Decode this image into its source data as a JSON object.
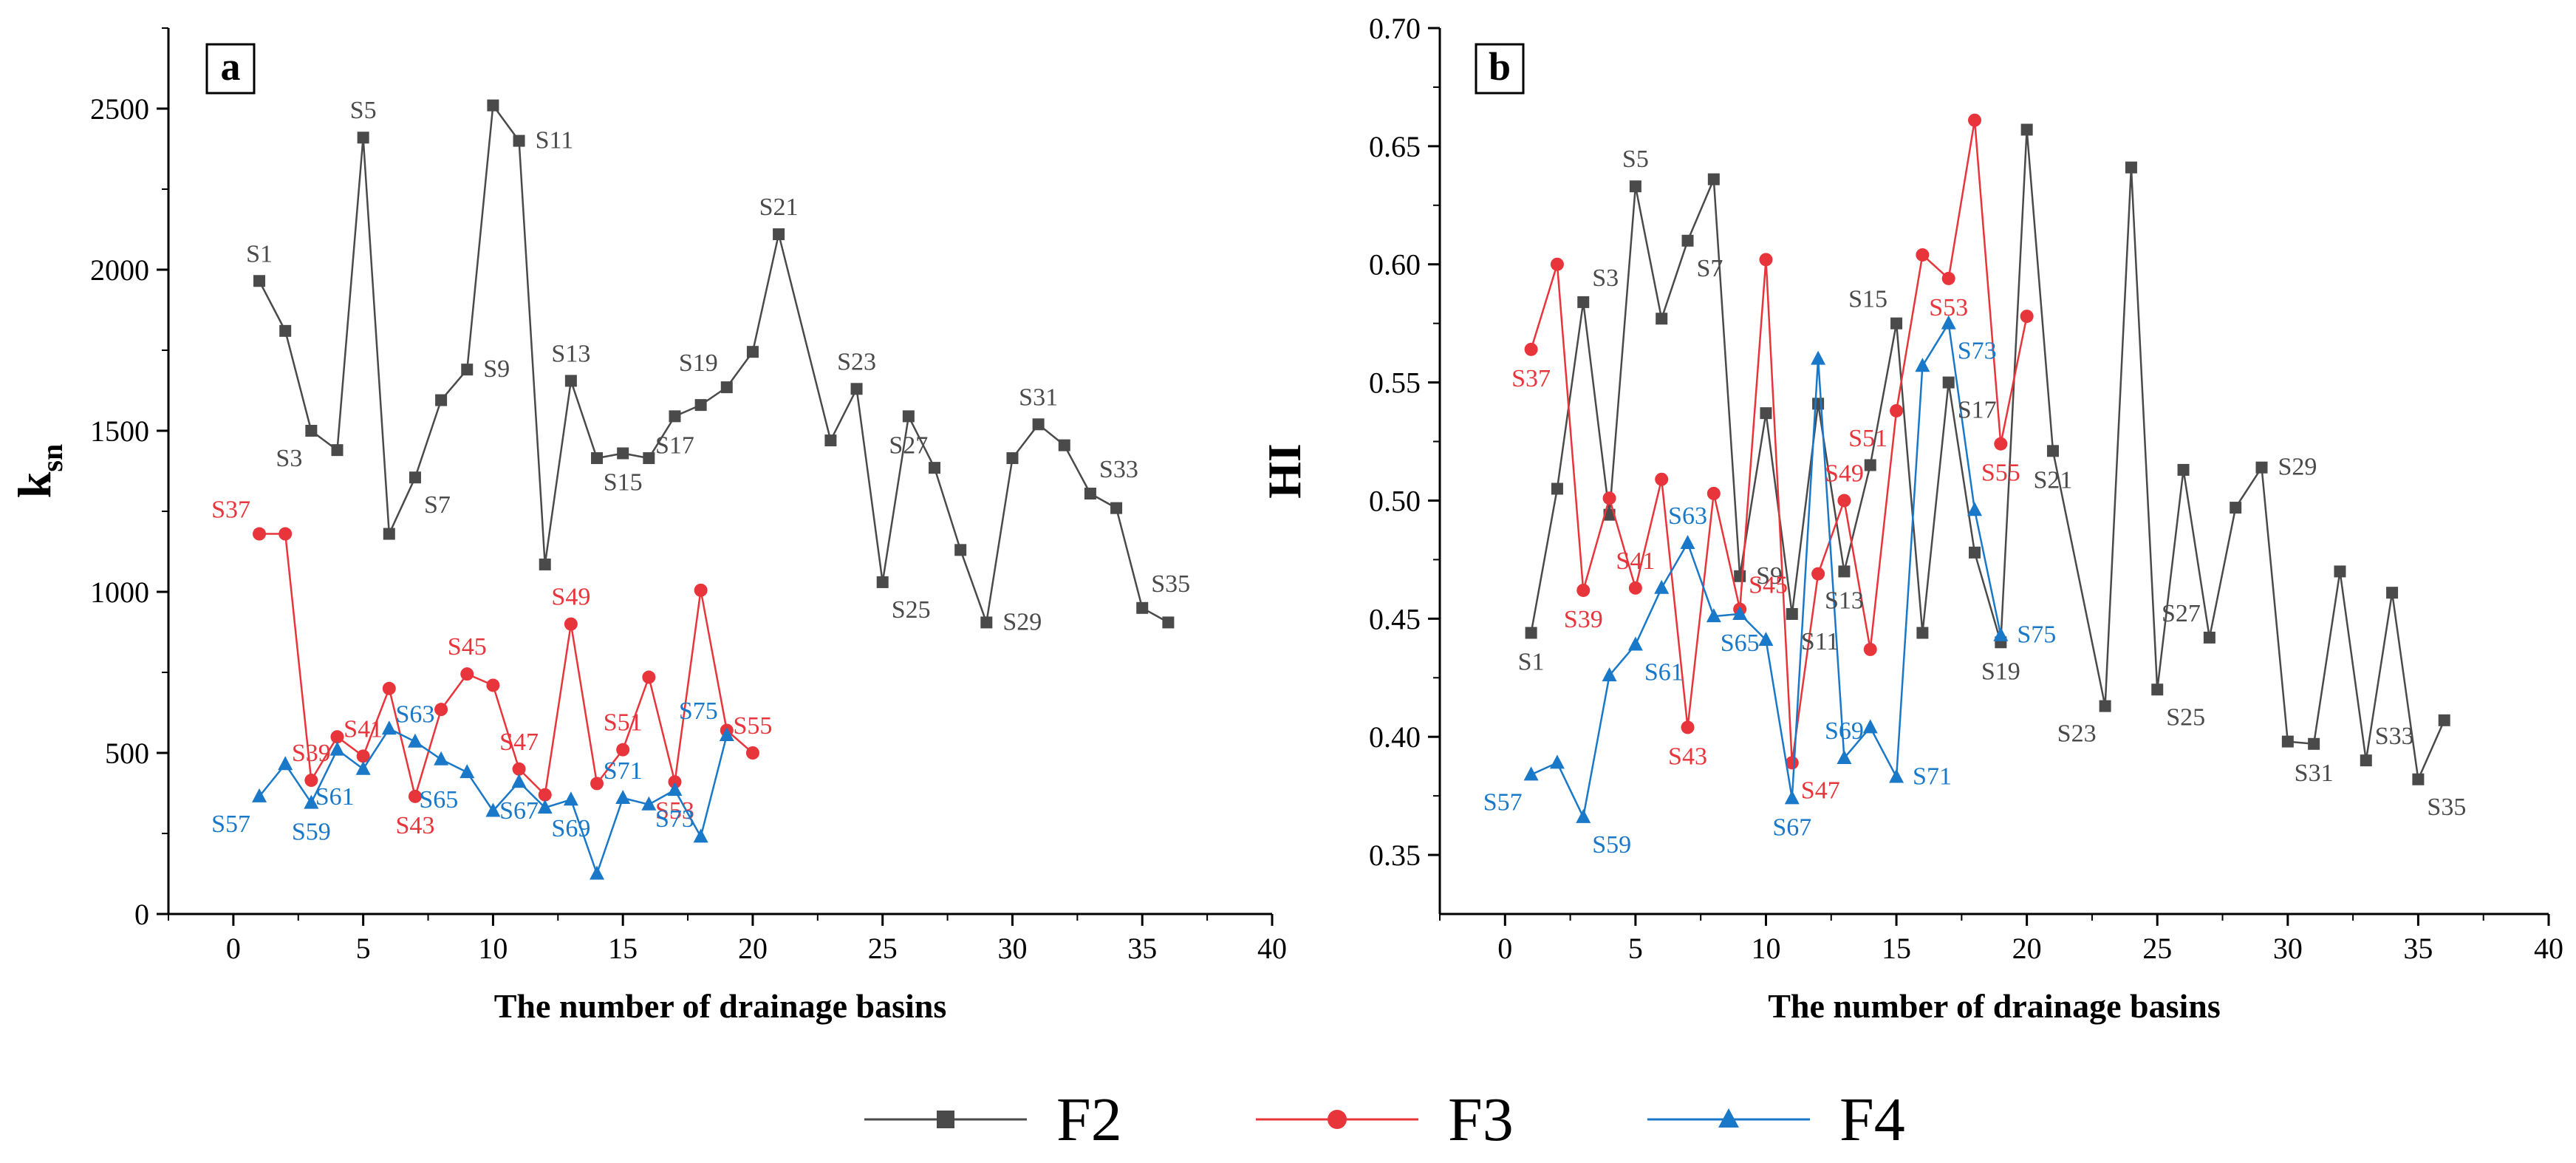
{
  "colors": {
    "F2": "#4a4a4a",
    "F3": "#e8353b",
    "F4": "#1a78c8",
    "axis": "#000000"
  },
  "legend": {
    "placement": "bottom-center",
    "items": [
      {
        "label": "F2",
        "marker": "square"
      },
      {
        "label": "F3",
        "marker": "circle"
      },
      {
        "label": "F4",
        "marker": "triangle"
      }
    ]
  },
  "chart_data": [
    {
      "panel": "a",
      "type": "line",
      "xlabel": "The number of drainage basins",
      "ylabel": "k",
      "ylabel_sub": "sn",
      "xlim": [
        -2.5,
        40
      ],
      "ylim": [
        0,
        2750
      ],
      "xticks": [
        0,
        5,
        10,
        15,
        20,
        25,
        30,
        35,
        40
      ],
      "yticks": [
        0,
        500,
        1000,
        1500,
        2000,
        2500
      ],
      "ytick_labels": [
        "0",
        "500",
        "1000",
        "1500",
        "2000",
        "2500"
      ],
      "series": [
        {
          "name": "F2",
          "color": "#4a4a4a",
          "marker": "square",
          "x": [
            1,
            2,
            3,
            4,
            5,
            6,
            7,
            8,
            9,
            10,
            11,
            12,
            13,
            14,
            15,
            16,
            17,
            18,
            19,
            20,
            21,
            23,
            24,
            25,
            26,
            27,
            28,
            29,
            30,
            31,
            32,
            33,
            34,
            35,
            36
          ],
          "y": [
            1965,
            1810,
            1500,
            1440,
            2410,
            1180,
            1355,
            1595,
            1690,
            2510,
            2400,
            1085,
            1655,
            1415,
            1430,
            1415,
            1545,
            1580,
            1635,
            1745,
            2110,
            1470,
            1630,
            1030,
            1545,
            1385,
            1130,
            905,
            1415,
            1520,
            1455,
            1305,
            1260,
            950,
            905
          ]
        },
        {
          "name": "F3",
          "color": "#e8353b",
          "marker": "circle",
          "x": [
            1,
            2,
            3,
            4,
            5,
            6,
            7,
            8,
            9,
            10,
            11,
            12,
            13,
            14,
            15,
            16,
            17,
            18,
            19,
            20
          ],
          "y": [
            1180,
            1180,
            415,
            550,
            490,
            700,
            365,
            635,
            745,
            710,
            450,
            370,
            900,
            405,
            510,
            735,
            410,
            1005,
            570,
            500
          ]
        },
        {
          "name": "F4",
          "color": "#1a78c8",
          "marker": "triangle",
          "x": [
            1,
            2,
            3,
            4,
            5,
            6,
            7,
            8,
            9,
            10,
            11,
            12,
            13,
            14,
            15,
            16,
            17,
            18,
            19
          ],
          "y": [
            365,
            465,
            345,
            510,
            450,
            575,
            535,
            480,
            440,
            320,
            410,
            330,
            355,
            125,
            360,
            340,
            385,
            240,
            555
          ]
        }
      ],
      "annotations": [
        {
          "text": "S1",
          "series": "F2",
          "x": 1,
          "y": 1965,
          "pos": "above"
        },
        {
          "text": "S3",
          "series": "F2",
          "x": 3,
          "y": 1500,
          "pos": "below-left"
        },
        {
          "text": "S5",
          "series": "F2",
          "x": 5,
          "y": 2410,
          "pos": "above"
        },
        {
          "text": "S7",
          "series": "F2",
          "x": 7,
          "y": 1355,
          "pos": "below-right"
        },
        {
          "text": "S9",
          "series": "F2",
          "x": 9,
          "y": 1690,
          "pos": "right"
        },
        {
          "text": "S11",
          "series": "F2",
          "x": 11,
          "y": 2400,
          "pos": "right"
        },
        {
          "text": "S13",
          "series": "F2",
          "x": 13,
          "y": 1655,
          "pos": "above"
        },
        {
          "text": "S15",
          "series": "F2",
          "x": 15,
          "y": 1430,
          "pos": "below"
        },
        {
          "text": "S17",
          "series": "F2",
          "x": 17,
          "y": 1545,
          "pos": "below"
        },
        {
          "text": "S19",
          "series": "F2",
          "x": 19,
          "y": 1635,
          "pos": "above-left"
        },
        {
          "text": "S21",
          "series": "F2",
          "x": 21,
          "y": 2110,
          "pos": "above"
        },
        {
          "text": "S23",
          "series": "F2",
          "x": 24,
          "y": 1630,
          "pos": "above"
        },
        {
          "text": "S25",
          "series": "F2",
          "x": 25,
          "y": 1030,
          "pos": "below-right"
        },
        {
          "text": "S27",
          "series": "F2",
          "x": 26,
          "y": 1545,
          "pos": "below"
        },
        {
          "text": "S29",
          "series": "F2",
          "x": 29,
          "y": 905,
          "pos": "right"
        },
        {
          "text": "S31",
          "series": "F2",
          "x": 31,
          "y": 1520,
          "pos": "above"
        },
        {
          "text": "S33",
          "series": "F2",
          "x": 33,
          "y": 1305,
          "pos": "above-right"
        },
        {
          "text": "S35",
          "series": "F2",
          "x": 35,
          "y": 950,
          "pos": "above-right"
        },
        {
          "text": "S37",
          "series": "F3",
          "x": 1,
          "y": 1180,
          "pos": "above-left"
        },
        {
          "text": "S39",
          "series": "F3",
          "x": 3,
          "y": 415,
          "pos": "above"
        },
        {
          "text": "S41",
          "series": "F3",
          "x": 5,
          "y": 490,
          "pos": "above"
        },
        {
          "text": "S43",
          "series": "F3",
          "x": 7,
          "y": 365,
          "pos": "below"
        },
        {
          "text": "S45",
          "series": "F3",
          "x": 9,
          "y": 745,
          "pos": "above"
        },
        {
          "text": "S47",
          "series": "F3",
          "x": 11,
          "y": 450,
          "pos": "above"
        },
        {
          "text": "S49",
          "series": "F3",
          "x": 13,
          "y": 900,
          "pos": "above"
        },
        {
          "text": "S51",
          "series": "F3",
          "x": 15,
          "y": 510,
          "pos": "above"
        },
        {
          "text": "S53",
          "series": "F3",
          "x": 17,
          "y": 410,
          "pos": "below"
        },
        {
          "text": "S55",
          "series": "F3",
          "x": 20,
          "y": 500,
          "pos": "above"
        },
        {
          "text": "S57",
          "series": "F4",
          "x": 1,
          "y": 365,
          "pos": "below-left"
        },
        {
          "text": "S59",
          "series": "F4",
          "x": 3,
          "y": 345,
          "pos": "below"
        },
        {
          "text": "S61",
          "series": "F4",
          "x": 5,
          "y": 450,
          "pos": "below-left"
        },
        {
          "text": "S63",
          "series": "F4",
          "x": 7,
          "y": 535,
          "pos": "above"
        },
        {
          "text": "S65",
          "series": "F4",
          "x": 9,
          "y": 440,
          "pos": "below-left"
        },
        {
          "text": "S67",
          "series": "F4",
          "x": 11,
          "y": 410,
          "pos": "below"
        },
        {
          "text": "S69",
          "series": "F4",
          "x": 13,
          "y": 355,
          "pos": "below"
        },
        {
          "text": "S71",
          "series": "F4",
          "x": 15,
          "y": 360,
          "pos": "above"
        },
        {
          "text": "S73",
          "series": "F4",
          "x": 17,
          "y": 385,
          "pos": "below"
        },
        {
          "text": "S75",
          "series": "F4",
          "x": 19,
          "y": 555,
          "pos": "above-left"
        }
      ]
    },
    {
      "panel": "b",
      "type": "line",
      "xlabel": "The number of drainage basins",
      "ylabel": "HI",
      "xlim": [
        -2.5,
        40
      ],
      "ylim": [
        0.325,
        0.7
      ],
      "xticks": [
        0,
        5,
        10,
        15,
        20,
        25,
        30,
        35,
        40
      ],
      "yticks": [
        0.35,
        0.4,
        0.45,
        0.5,
        0.55,
        0.6,
        0.65,
        0.7
      ],
      "ytick_labels": [
        "0.35",
        "0.40",
        "0.45",
        "0.50",
        "0.55",
        "0.60",
        "0.65",
        "0.70"
      ],
      "series": [
        {
          "name": "F2",
          "color": "#4a4a4a",
          "marker": "square",
          "x": [
            1,
            2,
            3,
            4,
            5,
            6,
            7,
            8,
            9,
            10,
            11,
            12,
            13,
            14,
            15,
            16,
            17,
            18,
            19,
            20,
            21,
            23,
            24,
            25,
            26,
            27,
            28,
            29,
            30,
            31,
            32,
            33,
            34,
            35,
            36
          ],
          "y": [
            0.444,
            0.505,
            0.584,
            0.494,
            0.633,
            0.577,
            0.61,
            0.636,
            0.468,
            0.537,
            0.452,
            0.541,
            0.47,
            0.515,
            0.575,
            0.444,
            0.55,
            0.478,
            0.44,
            0.657,
            0.521,
            0.413,
            0.641,
            0.42,
            0.513,
            0.442,
            0.497,
            0.514,
            0.398,
            0.397,
            0.47,
            0.39,
            0.461,
            0.382,
            0.407
          ]
        },
        {
          "name": "F3",
          "color": "#e8353b",
          "marker": "circle",
          "x": [
            1,
            2,
            3,
            4,
            5,
            6,
            7,
            8,
            9,
            10,
            11,
            12,
            13,
            14,
            15,
            16,
            17,
            18,
            19,
            20
          ],
          "y": [
            0.564,
            0.6,
            0.462,
            0.501,
            0.463,
            0.509,
            0.404,
            0.503,
            0.454,
            0.602,
            0.389,
            0.469,
            0.5,
            0.437,
            0.538,
            0.604,
            0.594,
            0.661,
            0.524,
            0.578
          ]
        },
        {
          "name": "F4",
          "color": "#1a78c8",
          "marker": "triangle",
          "x": [
            1,
            2,
            3,
            4,
            5,
            6,
            7,
            8,
            9,
            10,
            11,
            12,
            13,
            14,
            15,
            16,
            17,
            18,
            19
          ],
          "y": [
            0.384,
            0.389,
            0.366,
            0.426,
            0.439,
            0.463,
            0.482,
            0.451,
            0.452,
            0.441,
            0.374,
            0.56,
            0.391,
            0.404,
            0.383,
            0.557,
            0.575,
            0.496,
            0.443
          ]
        }
      ],
      "annotations": [
        {
          "text": "S1",
          "series": "F2",
          "x": 1,
          "y": 0.444,
          "pos": "below"
        },
        {
          "text": "S3",
          "series": "F2",
          "x": 3,
          "y": 0.584,
          "pos": "above-right"
        },
        {
          "text": "S5",
          "series": "F2",
          "x": 5,
          "y": 0.633,
          "pos": "above"
        },
        {
          "text": "S7",
          "series": "F2",
          "x": 7,
          "y": 0.61,
          "pos": "below-right"
        },
        {
          "text": "S9",
          "series": "F2",
          "x": 9,
          "y": 0.468,
          "pos": "right"
        },
        {
          "text": "S11",
          "series": "F2",
          "x": 11,
          "y": 0.452,
          "pos": "below-right"
        },
        {
          "text": "S13",
          "series": "F2",
          "x": 13,
          "y": 0.47,
          "pos": "below"
        },
        {
          "text": "S15",
          "series": "F2",
          "x": 15,
          "y": 0.575,
          "pos": "above-left"
        },
        {
          "text": "S17",
          "series": "F2",
          "x": 17,
          "y": 0.55,
          "pos": "below-right"
        },
        {
          "text": "S19",
          "series": "F2",
          "x": 19,
          "y": 0.44,
          "pos": "below"
        },
        {
          "text": "S21",
          "series": "F2",
          "x": 21,
          "y": 0.521,
          "pos": "below"
        },
        {
          "text": "S23",
          "series": "F2",
          "x": 23,
          "y": 0.413,
          "pos": "below-left"
        },
        {
          "text": "S25",
          "series": "F2",
          "x": 25,
          "y": 0.42,
          "pos": "below-right"
        },
        {
          "text": "S27",
          "series": "F2",
          "x": 27,
          "y": 0.442,
          "pos": "above-left"
        },
        {
          "text": "S29",
          "series": "F2",
          "x": 29,
          "y": 0.514,
          "pos": "right"
        },
        {
          "text": "S31",
          "series": "F2",
          "x": 31,
          "y": 0.397,
          "pos": "below"
        },
        {
          "text": "S33",
          "series": "F2",
          "x": 33,
          "y": 0.39,
          "pos": "above-right"
        },
        {
          "text": "S35",
          "series": "F2",
          "x": 35,
          "y": 0.382,
          "pos": "below-right"
        },
        {
          "text": "S37",
          "series": "F3",
          "x": 1,
          "y": 0.564,
          "pos": "below"
        },
        {
          "text": "S39",
          "series": "F3",
          "x": 3,
          "y": 0.462,
          "pos": "below"
        },
        {
          "text": "S41",
          "series": "F3",
          "x": 5,
          "y": 0.463,
          "pos": "above"
        },
        {
          "text": "S43",
          "series": "F3",
          "x": 7,
          "y": 0.404,
          "pos": "below"
        },
        {
          "text": "S45",
          "series": "F3",
          "x": 9,
          "y": 0.454,
          "pos": "above-right"
        },
        {
          "text": "S47",
          "series": "F3",
          "x": 11,
          "y": 0.389,
          "pos": "below-right"
        },
        {
          "text": "S49",
          "series": "F3",
          "x": 13,
          "y": 0.5,
          "pos": "above"
        },
        {
          "text": "S51",
          "series": "F3",
          "x": 15,
          "y": 0.538,
          "pos": "below-left"
        },
        {
          "text": "S53",
          "series": "F3",
          "x": 17,
          "y": 0.594,
          "pos": "below"
        },
        {
          "text": "S55",
          "series": "F3",
          "x": 19,
          "y": 0.524,
          "pos": "below"
        },
        {
          "text": "S57",
          "series": "F4",
          "x": 1,
          "y": 0.384,
          "pos": "below-left"
        },
        {
          "text": "S59",
          "series": "F4",
          "x": 3,
          "y": 0.366,
          "pos": "below-right"
        },
        {
          "text": "S61",
          "series": "F4",
          "x": 5,
          "y": 0.439,
          "pos": "below-right"
        },
        {
          "text": "S63",
          "series": "F4",
          "x": 7,
          "y": 0.482,
          "pos": "above"
        },
        {
          "text": "S65",
          "series": "F4",
          "x": 9,
          "y": 0.452,
          "pos": "below"
        },
        {
          "text": "S67",
          "series": "F4",
          "x": 11,
          "y": 0.374,
          "pos": "below"
        },
        {
          "text": "S69",
          "series": "F4",
          "x": 13,
          "y": 0.391,
          "pos": "above"
        },
        {
          "text": "S71",
          "series": "F4",
          "x": 15,
          "y": 0.383,
          "pos": "right"
        },
        {
          "text": "S73",
          "series": "F4",
          "x": 17,
          "y": 0.575,
          "pos": "below-right"
        },
        {
          "text": "S75",
          "series": "F4",
          "x": 19,
          "y": 0.443,
          "pos": "right"
        }
      ]
    }
  ]
}
